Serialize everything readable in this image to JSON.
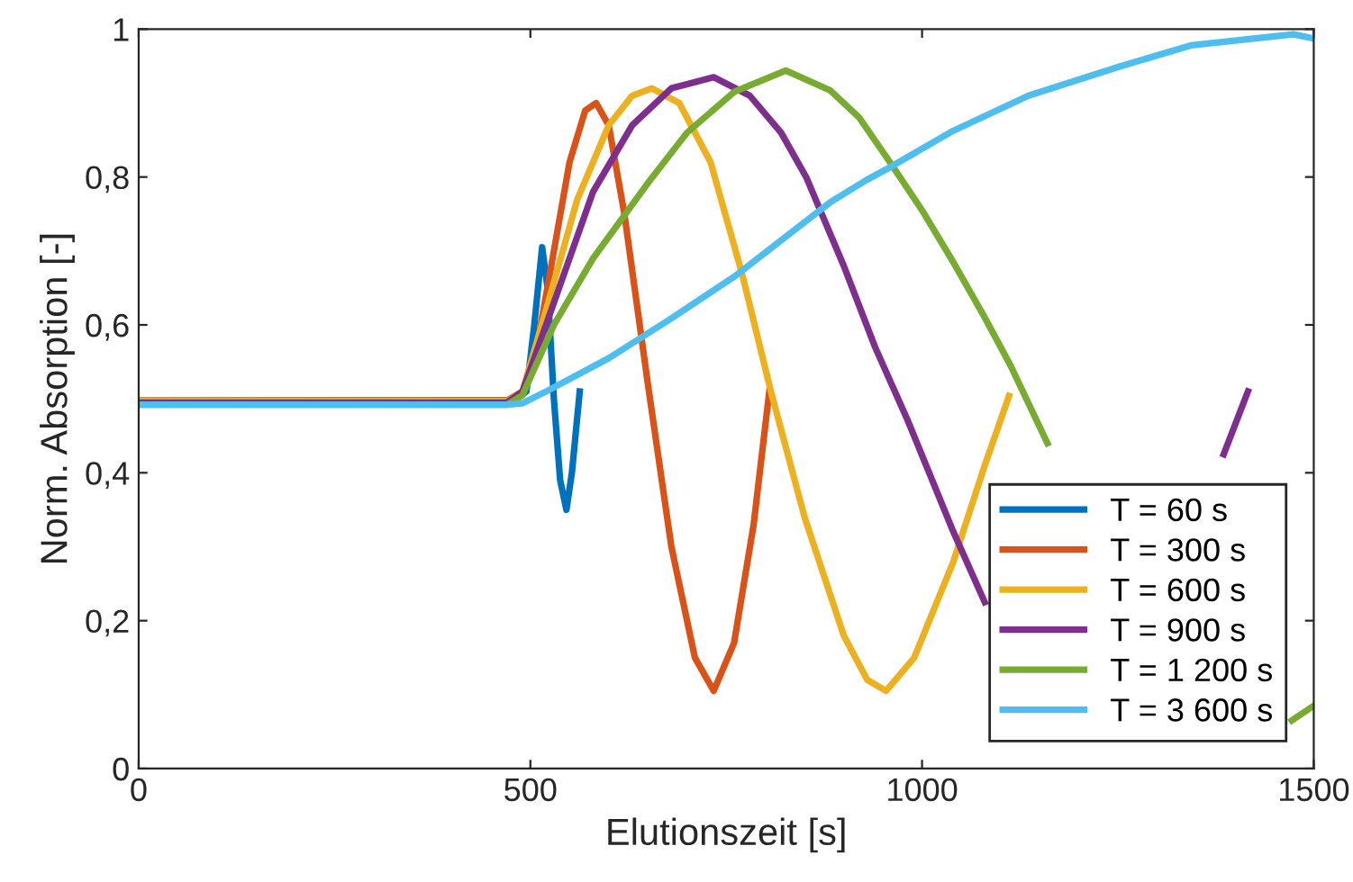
{
  "chart_data": {
    "type": "line",
    "xlabel": "Elutionszeit [s]",
    "ylabel": "Norm. Absorption [-]",
    "xlim": [
      0,
      1500
    ],
    "xticks": [
      0,
      500,
      1000,
      1500
    ],
    "ylim": [
      0,
      1
    ],
    "yticks": [
      0,
      {
        "value": 0.2,
        "label": "0,2"
      },
      {
        "value": 0.4,
        "label": "0,4"
      },
      {
        "value": 0.6,
        "label": "0,6"
      },
      {
        "value": 0.8,
        "label": "0,8"
      },
      1
    ],
    "grid": false,
    "legend": "bottom right",
    "line_style": "solid",
    "marker": "none",
    "series": [
      {
        "name": "T = 60 s",
        "color": "#0072bd",
        "x": [
          0,
          480,
          495,
          505,
          515,
          522,
          530,
          538,
          546,
          553,
          563
        ],
        "values": [
          0.497,
          0.498,
          0.51,
          0.6,
          0.705,
          0.65,
          0.5,
          0.39,
          0.35,
          0.4,
          0.51
        ]
      },
      {
        "name": "T = 300 s",
        "color": "#d95319",
        "x": [
          0,
          470,
          490,
          510,
          530,
          550,
          570,
          584,
          600,
          620,
          650,
          680,
          710,
          734,
          760,
          785,
          805
        ],
        "values": [
          0.498,
          0.498,
          0.51,
          0.58,
          0.7,
          0.82,
          0.89,
          0.9,
          0.87,
          0.75,
          0.52,
          0.3,
          0.15,
          0.105,
          0.17,
          0.33,
          0.51
        ]
      },
      {
        "name": "T = 600 s",
        "color": "#edb120",
        "x": [
          0,
          470,
          490,
          520,
          560,
          600,
          630,
          655,
          690,
          730,
          770,
          807,
          850,
          900,
          930,
          954,
          990,
          1040,
          1080,
          1111
        ],
        "values": [
          0.497,
          0.497,
          0.51,
          0.62,
          0.77,
          0.87,
          0.91,
          0.92,
          0.9,
          0.82,
          0.67,
          0.51,
          0.34,
          0.18,
          0.12,
          0.105,
          0.15,
          0.28,
          0.41,
          0.504
        ]
      },
      {
        "name": "T = 900 s",
        "color": "#7e2f8e",
        "x": [
          0,
          470,
          490,
          530,
          580,
          630,
          680,
          734,
          780,
          820,
          852,
          900,
          940,
          982,
          1040,
          1080,
          1240,
          1385,
          1416
        ],
        "values": [
          0.495,
          0.495,
          0.51,
          0.63,
          0.78,
          0.87,
          0.92,
          0.935,
          0.91,
          0.86,
          0.8,
          0.68,
          0.57,
          0.47,
          0.32,
          0.225,
          null,
          0.425,
          0.51
        ]
      },
      {
        "name": "T = 1 200 s",
        "color": "#77ac30",
        "x": [
          0,
          470,
          490,
          530,
          580,
          653,
          700,
          760,
          826,
          883,
          920,
          959,
          1000,
          1037,
          1080,
          1113,
          1160,
          1300,
          1472,
          1500
        ],
        "values": [
          0.492,
          0.492,
          0.505,
          0.6,
          0.69,
          0.796,
          0.86,
          0.915,
          0.944,
          0.917,
          0.88,
          0.82,
          0.755,
          0.69,
          0.61,
          0.545,
          0.44,
          null,
          0.065,
          0.085
        ]
      },
      {
        "name": "T = 3 600 s",
        "color": "#4dbeee",
        "x": [
          0,
          470,
          490,
          522,
          600,
          676,
          760,
          883,
          929,
          959,
          1037,
          1136,
          1251,
          1343,
          1474,
          1497
        ],
        "values": [
          0.492,
          0.492,
          0.494,
          0.511,
          0.555,
          0.606,
          0.665,
          0.766,
          0.796,
          0.813,
          0.861,
          0.91,
          0.949,
          0.978,
          0.993,
          0.988
        ]
      }
    ]
  }
}
